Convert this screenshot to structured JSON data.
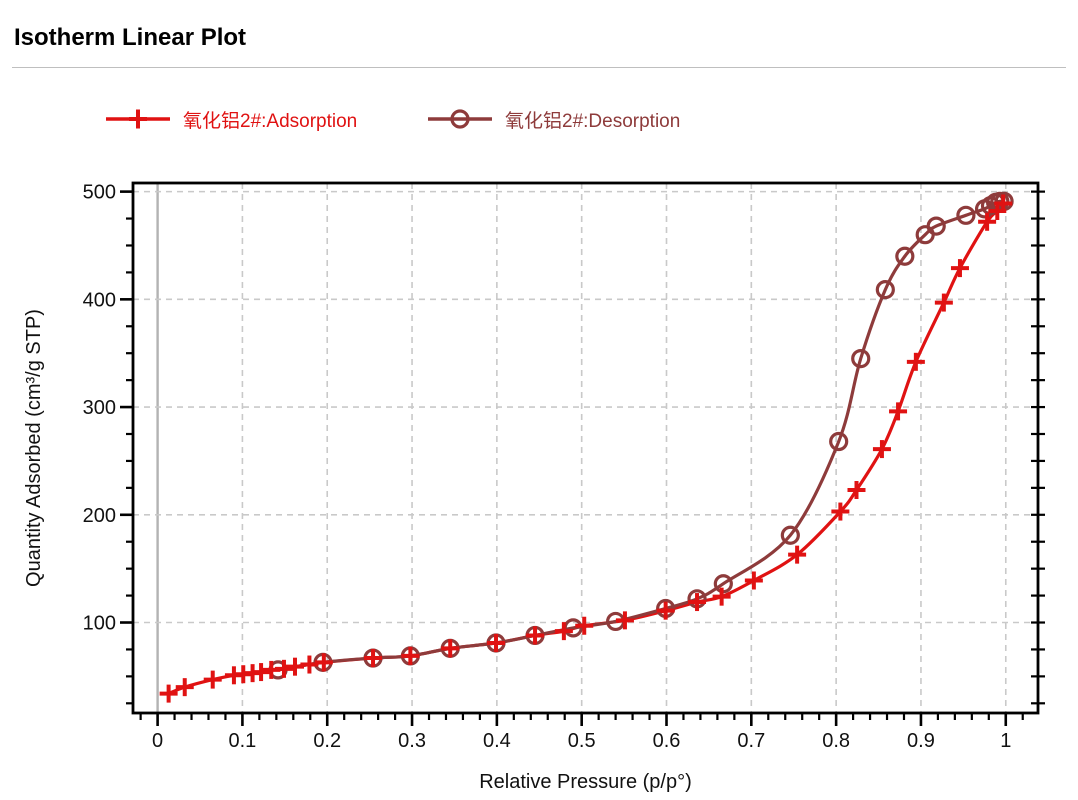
{
  "page": {
    "title": "Isotherm Linear Plot"
  },
  "chart_data": {
    "type": "line",
    "title": "Isotherm Linear Plot",
    "xlabel": "Relative Pressure (p/p°)",
    "ylabel": "Quantity Adsorbed (cm³/g STP)",
    "xlim": [
      -0.029,
      1.038
    ],
    "ylim": [
      16,
      508
    ],
    "x_major_ticks": [
      0,
      0.1,
      0.2,
      0.3,
      0.4,
      0.5,
      0.6,
      0.7,
      0.8,
      0.9,
      1
    ],
    "x_tick_labels": [
      "0",
      "0.1",
      "0.2",
      "0.3",
      "0.4",
      "0.5",
      "0.6",
      "0.7",
      "0.8",
      "0.9",
      "1"
    ],
    "x_minor_tick_step": 0.02,
    "y_major_ticks": [
      100,
      200,
      300,
      400,
      500
    ],
    "y_minor_tick_step": 25,
    "grid": {
      "show": true,
      "style": "dashed",
      "color": "#c9c9c9",
      "on": "major"
    },
    "zero_line": {
      "x": 0,
      "color": "#b3b3b3"
    },
    "legend_position": "top-left",
    "axis_color": "#000000",
    "series": [
      {
        "name": "氧化铝2#:Adsorption",
        "marker": "plus",
        "color": "#e01212",
        "points": [
          [
            0.013,
            34
          ],
          [
            0.032,
            40
          ],
          [
            0.065,
            47
          ],
          [
            0.09,
            51
          ],
          [
            0.101,
            52
          ],
          [
            0.112,
            53
          ],
          [
            0.122,
            54
          ],
          [
            0.134,
            56
          ],
          [
            0.149,
            57
          ],
          [
            0.162,
            59
          ],
          [
            0.179,
            61
          ],
          [
            0.196,
            63
          ],
          [
            0.254,
            67
          ],
          [
            0.298,
            69
          ],
          [
            0.345,
            76
          ],
          [
            0.399,
            81
          ],
          [
            0.445,
            88
          ],
          [
            0.479,
            92
          ],
          [
            0.503,
            97
          ],
          [
            0.551,
            102
          ],
          [
            0.599,
            111
          ],
          [
            0.636,
            119
          ],
          [
            0.665,
            124
          ],
          [
            0.703,
            139
          ],
          [
            0.754,
            163
          ],
          [
            0.805,
            203
          ],
          [
            0.824,
            223
          ],
          [
            0.854,
            261
          ],
          [
            0.873,
            296
          ],
          [
            0.894,
            342
          ],
          [
            0.927,
            397
          ],
          [
            0.946,
            429
          ],
          [
            0.978,
            472
          ],
          [
            0.99,
            482
          ],
          [
            0.997,
            489
          ]
        ]
      },
      {
        "name": "氧化铝2#:Desorption",
        "marker": "open-circle",
        "color": "#8e3b3b",
        "points": [
          [
            0.142,
            56
          ],
          [
            0.195,
            63
          ],
          [
            0.254,
            67
          ],
          [
            0.298,
            69
          ],
          [
            0.345,
            76
          ],
          [
            0.399,
            81
          ],
          [
            0.445,
            88
          ],
          [
            0.49,
            95
          ],
          [
            0.54,
            101
          ],
          [
            0.599,
            113
          ],
          [
            0.636,
            122
          ],
          [
            0.667,
            136
          ],
          [
            0.746,
            181
          ],
          [
            0.803,
            268
          ],
          [
            0.829,
            345
          ],
          [
            0.858,
            409
          ],
          [
            0.881,
            440
          ],
          [
            0.905,
            460
          ],
          [
            0.918,
            468
          ],
          [
            0.953,
            478
          ],
          [
            0.975,
            484
          ],
          [
            0.982,
            487
          ],
          [
            0.988,
            490
          ],
          [
            0.993,
            491
          ],
          [
            0.998,
            491
          ]
        ]
      }
    ]
  }
}
